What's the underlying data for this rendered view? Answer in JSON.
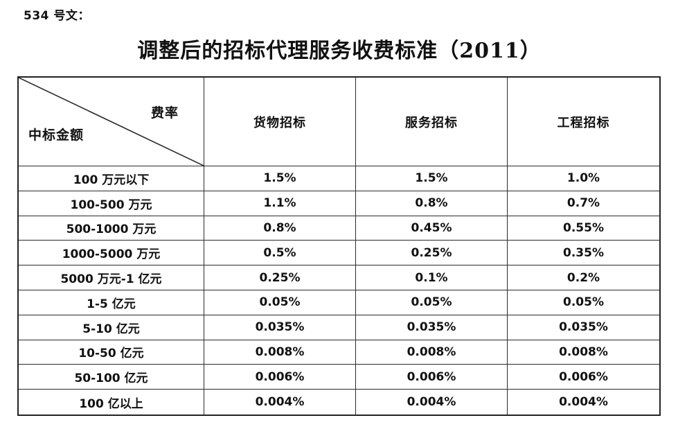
{
  "page": {
    "doc_label": "534 号文：",
    "title": "调整后的招标代理服务收费标准（2011）"
  },
  "table": {
    "corner": {
      "top_right": "费率",
      "bottom_left": "中标金额"
    },
    "columns": [
      "货物招标",
      "服务招标",
      "工程招标"
    ],
    "rows": [
      {
        "amount": "100 万元以下",
        "values": [
          "1.5%",
          "1.5%",
          "1.0%"
        ]
      },
      {
        "amount": "100-500 万元",
        "values": [
          "1.1%",
          "0.8%",
          "0.7%"
        ]
      },
      {
        "amount": "500-1000 万元",
        "values": [
          "0.8%",
          "0.45%",
          "0.55%"
        ]
      },
      {
        "amount": "1000-5000 万元",
        "values": [
          "0.5%",
          "0.25%",
          "0.35%"
        ]
      },
      {
        "amount": "5000 万元-1 亿元",
        "values": [
          "0.25%",
          "0.1%",
          "0.2%"
        ]
      },
      {
        "amount": "1-5 亿元",
        "values": [
          "0.05%",
          "0.05%",
          "0.05%"
        ]
      },
      {
        "amount": "5-10 亿元",
        "values": [
          "0.035%",
          "0.035%",
          "0.035%"
        ]
      },
      {
        "amount": "10-50 亿元",
        "values": [
          "0.008%",
          "0.008%",
          "0.008%"
        ]
      },
      {
        "amount": "50-100 亿元",
        "values": [
          "0.006%",
          "0.006%",
          "0.006%"
        ]
      },
      {
        "amount": "100 亿以上",
        "values": [
          "0.004%",
          "0.004%",
          "0.004%"
        ]
      }
    ]
  },
  "colors": {
    "text": "#111111",
    "border": "#2a2a2a",
    "background": "#ffffff"
  }
}
